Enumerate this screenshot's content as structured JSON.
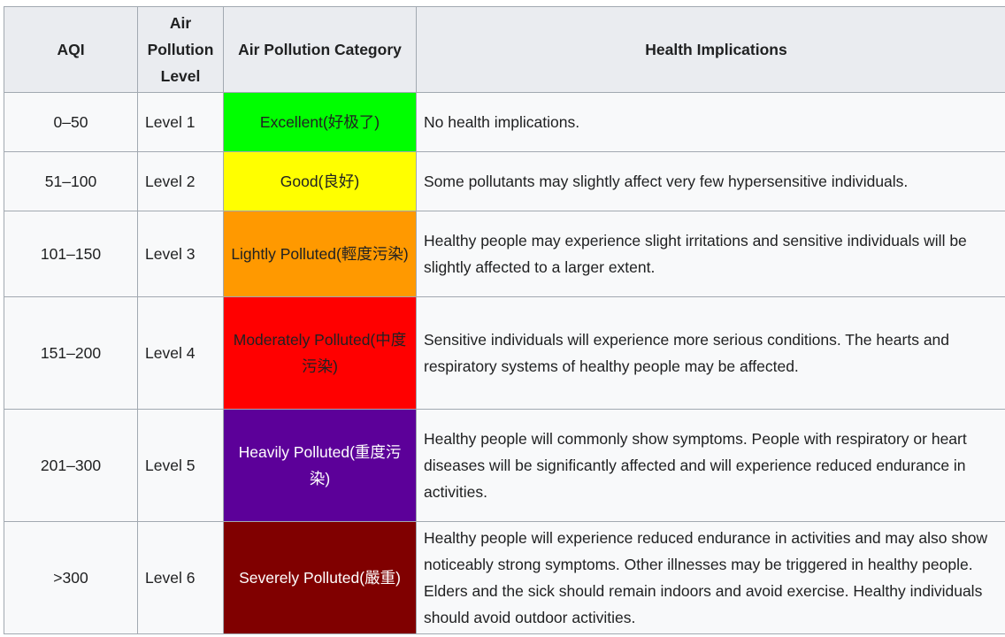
{
  "headers": {
    "aqi": "AQI",
    "level": "Air Pollution Level",
    "category": "Air Pollution Category",
    "health": "Health Implications"
  },
  "rows": [
    {
      "aqi": "0–50",
      "level": "Level 1",
      "category": "Excellent(好极了)",
      "health": "No health implications.",
      "bg": "#00ff00",
      "fg": "#202122"
    },
    {
      "aqi": "51–100",
      "level": "Level 2",
      "category": "Good(良好)",
      "health": "Some pollutants may slightly affect very few hypersensitive individuals.",
      "bg": "#ffff00",
      "fg": "#202122"
    },
    {
      "aqi": "101–150",
      "level": "Level 3",
      "category": "Lightly Polluted(輕度污染)",
      "health": "Healthy people may experience slight irritations and sensitive individuals will be slightly affected to a larger extent.",
      "bg": "#ff9900",
      "fg": "#202122"
    },
    {
      "aqi": "151–200",
      "level": "Level 4",
      "category": "Moderately Polluted(中度污染)",
      "health": "Sensitive individuals will experience more serious conditions. The hearts and respiratory systems of healthy people may be affected.",
      "bg": "#ff0000",
      "fg": "#202122"
    },
    {
      "aqi": "201–300",
      "level": "Level 5",
      "category": "Heavily Polluted(重度污染)",
      "health": "Healthy people will commonly show symptoms. People with respiratory or heart diseases will be significantly affected and will experience reduced endurance in activities.",
      "bg": "#5c0099",
      "fg": "#ffffff"
    },
    {
      "aqi": ">300",
      "level": "Level 6",
      "category": "Severely Polluted(嚴重)",
      "health": "Healthy people will experience reduced endurance in activities and may also show noticeably strong symptoms. Other illnesses may be triggered in healthy people. Elders and the sick should remain indoors and avoid exercise. Healthy individuals should avoid outdoor activities.",
      "bg": "#800000",
      "fg": "#ffffff"
    }
  ]
}
